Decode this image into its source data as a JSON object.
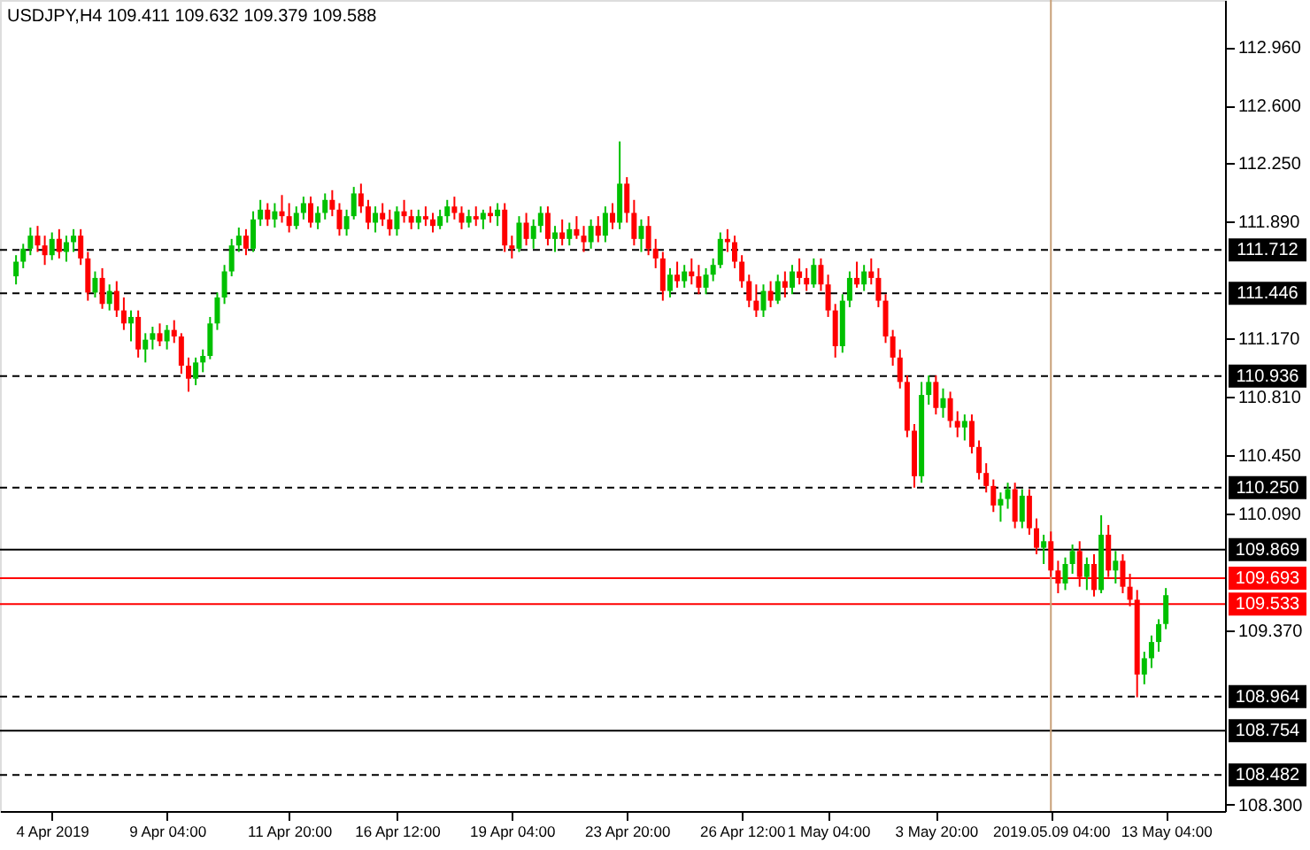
{
  "chart_data": {
    "type": "candlestick",
    "title": "USDJPY,H4  109.411 109.632 109.379 109.588",
    "categories": [
      null,
      null,
      null,
      null,
      null,
      "4 Apr 2019",
      null,
      null,
      null,
      null,
      null,
      null,
      null,
      null,
      null,
      null,
      null,
      null,
      null,
      null,
      null,
      "9 Apr 04:00",
      null,
      null,
      null,
      null,
      null,
      null,
      null,
      null,
      null,
      null,
      null,
      null,
      null,
      null,
      null,
      null,
      "11 Apr 20:00",
      null,
      null,
      null,
      null,
      null,
      null,
      null,
      null,
      null,
      null,
      null,
      null,
      null,
      null,
      "16 Apr 12:00",
      null,
      null,
      null,
      null,
      null,
      null,
      null,
      null,
      null,
      null,
      null,
      null,
      null,
      null,
      null,
      "19 Apr 04:00",
      null,
      null,
      null,
      null,
      null,
      null,
      null,
      null,
      null,
      null,
      null,
      null,
      null,
      null,
      null,
      "23 Apr 20:00",
      null,
      null,
      null,
      null,
      null,
      null,
      null,
      null,
      null,
      null,
      null,
      null,
      null,
      null,
      null,
      "26 Apr 12:00",
      null,
      null,
      null,
      null,
      null,
      null,
      null,
      null,
      null,
      null,
      null,
      "1 May 04:00",
      null,
      null,
      null,
      null,
      null,
      null,
      null,
      null,
      null,
      null,
      null,
      null,
      null,
      null,
      "3 May 20:00",
      null,
      null,
      null,
      null,
      null,
      null,
      null,
      null,
      null,
      null,
      null,
      null,
      null,
      null,
      null,
      "2019.05.09 04:00",
      null,
      null,
      null,
      null,
      null,
      null,
      null,
      null,
      null,
      null,
      null,
      null,
      null,
      null,
      null,
      "13 May 04:00"
    ],
    "ohlc": [
      [
        111.55,
        111.68,
        111.5,
        111.64
      ],
      [
        111.64,
        111.75,
        111.6,
        111.72
      ],
      [
        111.72,
        111.85,
        111.68,
        111.8
      ],
      [
        111.8,
        111.86,
        111.7,
        111.74
      ],
      [
        111.74,
        111.8,
        111.62,
        111.68
      ],
      [
        111.68,
        111.82,
        111.65,
        111.78
      ],
      [
        111.78,
        111.84,
        111.66,
        111.7
      ],
      [
        111.7,
        111.8,
        111.64,
        111.76
      ],
      [
        111.76,
        111.84,
        111.7,
        111.8
      ],
      [
        111.8,
        111.84,
        111.62,
        111.66
      ],
      [
        111.66,
        111.7,
        111.4,
        111.45
      ],
      [
        111.45,
        111.58,
        111.42,
        111.54
      ],
      [
        111.54,
        111.6,
        111.35,
        111.38
      ],
      [
        111.38,
        111.5,
        111.34,
        111.46
      ],
      [
        111.46,
        111.52,
        111.3,
        111.34
      ],
      [
        111.34,
        111.42,
        111.22,
        111.26
      ],
      [
        111.26,
        111.34,
        111.15,
        111.3
      ],
      [
        111.3,
        111.34,
        111.05,
        111.1
      ],
      [
        111.1,
        111.2,
        111.02,
        111.16
      ],
      [
        111.16,
        111.24,
        111.1,
        111.2
      ],
      [
        111.2,
        111.26,
        111.12,
        111.15
      ],
      [
        111.15,
        111.25,
        111.1,
        111.22
      ],
      [
        111.22,
        111.28,
        111.14,
        111.18
      ],
      [
        111.18,
        111.2,
        110.95,
        111.0
      ],
      [
        111.0,
        111.05,
        110.84,
        110.92
      ],
      [
        110.92,
        111.05,
        110.88,
        111.02
      ],
      [
        111.02,
        111.1,
        110.96,
        111.06
      ],
      [
        111.06,
        111.3,
        111.04,
        111.26
      ],
      [
        111.26,
        111.45,
        111.22,
        111.42
      ],
      [
        111.42,
        111.62,
        111.38,
        111.58
      ],
      [
        111.58,
        111.78,
        111.55,
        111.74
      ],
      [
        111.74,
        111.85,
        111.7,
        111.8
      ],
      [
        111.8,
        111.84,
        111.68,
        111.72
      ],
      [
        111.72,
        111.95,
        111.7,
        111.9
      ],
      [
        111.9,
        112.02,
        111.86,
        111.96
      ],
      [
        111.96,
        112.0,
        111.86,
        111.9
      ],
      [
        111.9,
        112.0,
        111.85,
        111.95
      ],
      [
        111.95,
        112.05,
        111.88,
        111.92
      ],
      [
        111.92,
        112.0,
        111.82,
        111.86
      ],
      [
        111.86,
        111.98,
        111.84,
        111.94
      ],
      [
        111.94,
        112.04,
        111.9,
        112.0
      ],
      [
        112.0,
        112.04,
        111.85,
        111.88
      ],
      [
        111.88,
        111.98,
        111.84,
        111.94
      ],
      [
        111.94,
        112.06,
        111.9,
        112.02
      ],
      [
        112.02,
        112.08,
        111.92,
        111.96
      ],
      [
        111.96,
        112.0,
        111.8,
        111.84
      ],
      [
        111.84,
        111.96,
        111.8,
        111.92
      ],
      [
        111.92,
        112.1,
        111.9,
        112.06
      ],
      [
        112.06,
        112.12,
        111.94,
        111.98
      ],
      [
        111.98,
        112.02,
        111.84,
        111.88
      ],
      [
        111.88,
        111.98,
        111.82,
        111.94
      ],
      [
        111.94,
        112.0,
        111.86,
        111.9
      ],
      [
        111.9,
        111.96,
        111.8,
        111.84
      ],
      [
        111.84,
        111.98,
        111.8,
        111.95
      ],
      [
        111.95,
        112.02,
        111.88,
        111.92
      ],
      [
        111.92,
        111.96,
        111.84,
        111.88
      ],
      [
        111.88,
        111.96,
        111.84,
        111.92
      ],
      [
        111.92,
        111.98,
        111.86,
        111.9
      ],
      [
        111.9,
        111.94,
        111.82,
        111.86
      ],
      [
        111.86,
        111.96,
        111.84,
        111.92
      ],
      [
        111.92,
        112.02,
        111.88,
        111.98
      ],
      [
        111.98,
        112.04,
        111.9,
        111.94
      ],
      [
        111.94,
        111.98,
        111.84,
        111.88
      ],
      [
        111.88,
        111.96,
        111.85,
        111.92
      ],
      [
        111.92,
        111.98,
        111.86,
        111.9
      ],
      [
        111.9,
        111.96,
        111.84,
        111.94
      ],
      [
        111.94,
        111.98,
        111.88,
        111.92
      ],
      [
        111.92,
        112.0,
        111.86,
        111.96
      ],
      [
        111.96,
        112.0,
        111.7,
        111.74
      ],
      [
        111.74,
        111.8,
        111.66,
        111.72
      ],
      [
        111.72,
        111.92,
        111.7,
        111.88
      ],
      [
        111.88,
        111.94,
        111.74,
        111.78
      ],
      [
        111.78,
        111.9,
        111.72,
        111.86
      ],
      [
        111.86,
        111.98,
        111.82,
        111.94
      ],
      [
        111.94,
        111.98,
        111.74,
        111.78
      ],
      [
        111.78,
        111.86,
        111.7,
        111.82
      ],
      [
        111.82,
        111.9,
        111.74,
        111.78
      ],
      [
        111.78,
        111.88,
        111.74,
        111.84
      ],
      [
        111.84,
        111.92,
        111.78,
        111.8
      ],
      [
        111.8,
        111.86,
        111.7,
        111.76
      ],
      [
        111.76,
        111.9,
        111.72,
        111.86
      ],
      [
        111.86,
        111.92,
        111.76,
        111.8
      ],
      [
        111.8,
        111.98,
        111.76,
        111.94
      ],
      [
        111.94,
        112.0,
        111.84,
        111.88
      ],
      [
        111.88,
        112.38,
        111.84,
        112.12
      ],
      [
        112.12,
        112.16,
        111.88,
        111.94
      ],
      [
        111.94,
        112.02,
        111.74,
        111.78
      ],
      [
        111.78,
        111.9,
        111.7,
        111.86
      ],
      [
        111.86,
        111.92,
        111.68,
        111.72
      ],
      [
        111.72,
        111.78,
        111.6,
        111.66
      ],
      [
        111.66,
        111.7,
        111.4,
        111.46
      ],
      [
        111.46,
        111.6,
        111.42,
        111.56
      ],
      [
        111.56,
        111.64,
        111.48,
        111.52
      ],
      [
        111.52,
        111.62,
        111.48,
        111.58
      ],
      [
        111.58,
        111.66,
        111.5,
        111.55
      ],
      [
        111.55,
        111.62,
        111.44,
        111.48
      ],
      [
        111.48,
        111.6,
        111.44,
        111.56
      ],
      [
        111.56,
        111.66,
        111.52,
        111.62
      ],
      [
        111.62,
        111.82,
        111.6,
        111.78
      ],
      [
        111.78,
        111.84,
        111.7,
        111.76
      ],
      [
        111.76,
        111.8,
        111.6,
        111.64
      ],
      [
        111.64,
        111.68,
        111.48,
        111.52
      ],
      [
        111.52,
        111.56,
        111.36,
        111.4
      ],
      [
        111.4,
        111.5,
        111.3,
        111.34
      ],
      [
        111.34,
        111.5,
        111.3,
        111.46
      ],
      [
        111.46,
        111.52,
        111.36,
        111.4
      ],
      [
        111.4,
        111.56,
        111.38,
        111.52
      ],
      [
        111.52,
        111.58,
        111.42,
        111.48
      ],
      [
        111.48,
        111.62,
        111.44,
        111.58
      ],
      [
        111.58,
        111.66,
        111.5,
        111.54
      ],
      [
        111.54,
        111.6,
        111.46,
        111.5
      ],
      [
        111.5,
        111.66,
        111.48,
        111.62
      ],
      [
        111.62,
        111.66,
        111.46,
        111.5
      ],
      [
        111.5,
        111.56,
        111.3,
        111.34
      ],
      [
        111.34,
        111.38,
        111.05,
        111.12
      ],
      [
        111.12,
        111.44,
        111.08,
        111.4
      ],
      [
        111.4,
        111.58,
        111.36,
        111.54
      ],
      [
        111.54,
        111.64,
        111.48,
        111.5
      ],
      [
        111.5,
        111.62,
        111.46,
        111.58
      ],
      [
        111.58,
        111.66,
        111.5,
        111.54
      ],
      [
        111.54,
        111.6,
        111.36,
        111.4
      ],
      [
        111.4,
        111.44,
        111.14,
        111.18
      ],
      [
        111.18,
        111.22,
        111.0,
        111.05
      ],
      [
        111.05,
        111.1,
        110.86,
        110.9
      ],
      [
        110.9,
        110.94,
        110.56,
        110.6
      ],
      [
        110.6,
        110.64,
        110.25,
        110.32
      ],
      [
        110.32,
        110.9,
        110.28,
        110.82
      ],
      [
        110.82,
        110.94,
        110.76,
        110.9
      ],
      [
        110.9,
        110.94,
        110.7,
        110.74
      ],
      [
        110.74,
        110.86,
        110.68,
        110.8
      ],
      [
        110.8,
        110.84,
        110.62,
        110.66
      ],
      [
        110.66,
        110.72,
        110.56,
        110.62
      ],
      [
        110.62,
        110.7,
        110.54,
        110.66
      ],
      [
        110.66,
        110.7,
        110.46,
        110.5
      ],
      [
        110.5,
        110.54,
        110.3,
        110.34
      ],
      [
        110.34,
        110.4,
        110.22,
        110.26
      ],
      [
        110.26,
        110.3,
        110.1,
        110.14
      ],
      [
        110.14,
        110.22,
        110.04,
        110.18
      ],
      [
        110.18,
        110.28,
        110.12,
        110.24
      ],
      [
        110.24,
        110.28,
        110.0,
        110.04
      ],
      [
        110.04,
        110.24,
        110.0,
        110.2
      ],
      [
        110.2,
        110.24,
        109.96,
        110.0
      ],
      [
        110.0,
        110.06,
        109.84,
        109.88
      ],
      [
        109.88,
        109.96,
        109.78,
        109.92
      ],
      [
        109.92,
        109.98,
        109.7,
        109.74
      ],
      [
        109.74,
        109.8,
        109.6,
        109.66
      ],
      [
        109.66,
        109.82,
        109.62,
        109.78
      ],
      [
        109.78,
        109.9,
        109.72,
        109.86
      ],
      [
        109.86,
        109.92,
        109.64,
        109.7
      ],
      [
        109.7,
        109.82,
        109.62,
        109.78
      ],
      [
        109.78,
        109.84,
        109.58,
        109.62
      ],
      [
        109.62,
        110.08,
        109.6,
        109.96
      ],
      [
        109.96,
        110.02,
        109.7,
        109.74
      ],
      [
        109.74,
        109.86,
        109.66,
        109.8
      ],
      [
        109.8,
        109.84,
        109.6,
        109.64
      ],
      [
        109.64,
        109.72,
        109.52,
        109.56
      ],
      [
        109.56,
        109.62,
        108.96,
        109.1
      ],
      [
        109.1,
        109.24,
        109.04,
        109.2
      ],
      [
        109.2,
        109.34,
        109.14,
        109.3
      ],
      [
        109.3,
        109.44,
        109.24,
        109.41
      ],
      [
        109.411,
        109.632,
        109.379,
        109.588
      ]
    ],
    "ylim": [
      108.26,
      113.25
    ],
    "yticks": [
      {
        "value": 112.96,
        "label": "112.960"
      },
      {
        "value": 112.6,
        "label": "112.600"
      },
      {
        "value": 112.25,
        "label": "112.250"
      },
      {
        "value": 111.89,
        "label": "111.890"
      },
      {
        "value": 111.17,
        "label": "111.170"
      },
      {
        "value": 110.81,
        "label": "110.810"
      },
      {
        "value": 110.45,
        "label": "110.450"
      },
      {
        "value": 110.09,
        "label": "110.090"
      },
      {
        "value": 109.37,
        "label": "109.370"
      },
      {
        "value": 108.3,
        "label": "108.300"
      }
    ],
    "ref_lines": [
      {
        "axis": "y",
        "value": 111.712,
        "label": "111.712",
        "color": "#000000",
        "line_style": "dashed"
      },
      {
        "axis": "y",
        "value": 111.446,
        "label": "111.446",
        "color": "#000000",
        "line_style": "dashed"
      },
      {
        "axis": "y",
        "value": 110.936,
        "label": "110.936",
        "color": "#000000",
        "line_style": "dashed"
      },
      {
        "axis": "y",
        "value": 110.25,
        "label": "110.250",
        "color": "#000000",
        "line_style": "dashed"
      },
      {
        "axis": "y",
        "value": 109.869,
        "label": "109.869",
        "color": "#000000",
        "line_style": "solid"
      },
      {
        "axis": "y",
        "value": 109.693,
        "label": "109.693",
        "color": "#ff0000",
        "line_style": "solid"
      },
      {
        "axis": "y",
        "value": 109.533,
        "label": "109.533",
        "color": "#ff0000",
        "line_style": "solid"
      },
      {
        "axis": "y",
        "value": 108.964,
        "label": "108.964",
        "color": "#000000",
        "line_style": "dashed"
      },
      {
        "axis": "y",
        "value": 108.754,
        "label": "108.754",
        "color": "#000000",
        "line_style": "solid"
      },
      {
        "axis": "y",
        "value": 108.482,
        "label": "108.482",
        "color": "#000000",
        "line_style": "dashed"
      },
      {
        "axis": "x",
        "value": "2019.05.09 04:00",
        "label": null,
        "color": "#c8a078",
        "line_style": "solid"
      }
    ],
    "grid": false
  }
}
